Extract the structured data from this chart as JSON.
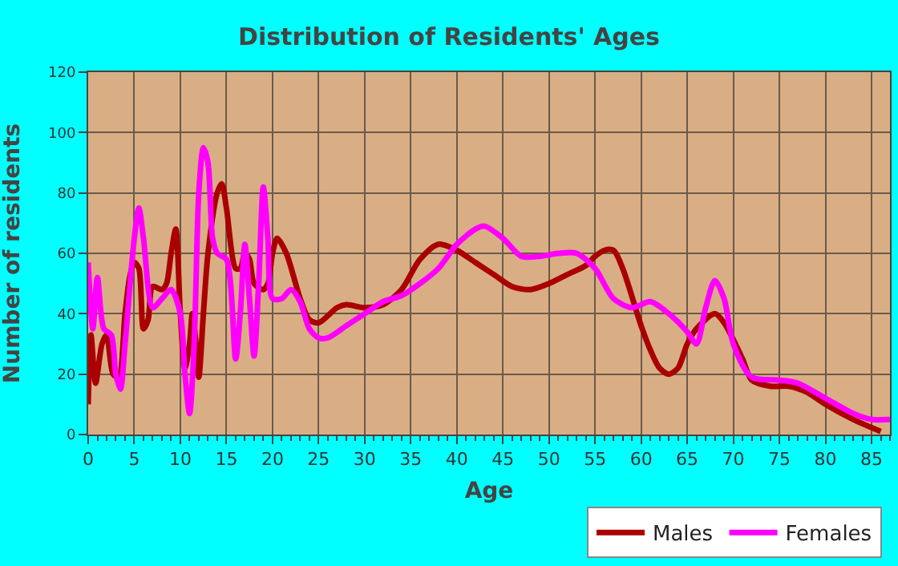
{
  "chart_data": {
    "type": "line",
    "title": "Distribution of Residents' Ages",
    "xlabel": "Age",
    "ylabel": "Number of residents",
    "xlim": [
      0,
      87
    ],
    "xticks": [
      0,
      5,
      10,
      15,
      20,
      25,
      30,
      35,
      40,
      45,
      50,
      55,
      60,
      65,
      70,
      75,
      80,
      85
    ],
    "ylim": [
      0,
      120
    ],
    "yticks": [
      0,
      20,
      40,
      60,
      80,
      100,
      120
    ],
    "grid": true,
    "legend": "bottom right",
    "marker": "none",
    "line_style": "solid",
    "series": [
      {
        "name": "Males",
        "color": "#aa0000",
        "x": [
          0,
          0.3,
          0.8,
          1.5,
          2,
          2.7,
          3.3,
          4,
          4.5,
          5,
          5.5,
          6,
          6.5,
          7,
          8,
          8.5,
          9,
          9.5,
          10,
          10.5,
          11,
          11.3,
          11.7,
          12,
          12.5,
          13,
          14,
          14.5,
          15,
          16,
          16.5,
          17,
          17.5,
          18,
          19,
          19.5,
          20,
          20.5,
          21.5,
          23,
          24,
          25,
          27,
          28,
          30,
          32,
          34,
          36,
          38,
          40,
          42,
          44,
          46,
          48,
          50,
          52,
          54,
          55,
          56,
          57,
          58,
          60,
          61,
          62,
          63,
          64,
          65,
          66,
          68,
          69,
          71,
          72,
          74,
          76,
          78,
          80,
          83,
          86
        ],
        "values": [
          10,
          33,
          17,
          30,
          33,
          20,
          19,
          40,
          52,
          57,
          55,
          35,
          38,
          49,
          48,
          50,
          60,
          68,
          40,
          22,
          30,
          40,
          30,
          19,
          40,
          60,
          80,
          83,
          75,
          55,
          55,
          60,
          58,
          50,
          48,
          50,
          60,
          65,
          60,
          45,
          38,
          37,
          42,
          43,
          42,
          43,
          48,
          58,
          63,
          61,
          57,
          53,
          49,
          48,
          50,
          53,
          56,
          59,
          61,
          61,
          55,
          36,
          28,
          22,
          20,
          22,
          30,
          35,
          40,
          37,
          25,
          18,
          16,
          16,
          14,
          10,
          5,
          1
        ]
      },
      {
        "name": "Females",
        "color": "#ff00ff",
        "x": [
          0,
          0.5,
          1,
          1.7,
          2.5,
          3,
          3.5,
          4,
          5,
          5.5,
          6,
          7,
          8,
          9,
          10,
          10.5,
          11,
          11.5,
          12,
          12.5,
          13,
          13.5,
          14,
          15,
          16,
          16.5,
          17,
          17.5,
          18,
          18.5,
          19,
          19.5,
          20,
          21,
          22,
          23,
          24,
          25,
          26,
          28,
          30,
          32,
          34,
          36,
          38,
          40,
          42,
          43,
          45,
          47,
          49,
          51,
          53,
          55,
          57,
          59,
          61,
          63,
          65,
          66,
          67,
          68,
          69,
          70,
          72,
          75,
          77,
          80,
          83,
          85,
          87
        ],
        "values": [
          57,
          35,
          52,
          35,
          33,
          20,
          15,
          30,
          65,
          75,
          65,
          42,
          45,
          48,
          40,
          20,
          7,
          30,
          80,
          95,
          90,
          65,
          60,
          58,
          25,
          40,
          63,
          45,
          26,
          50,
          82,
          65,
          45,
          45,
          48,
          44,
          35,
          32,
          32,
          36,
          40,
          44,
          46,
          50,
          55,
          63,
          68,
          69,
          65,
          59,
          59,
          60,
          60,
          55,
          45,
          42,
          44,
          40,
          34,
          30,
          42,
          51,
          45,
          30,
          19,
          18,
          17,
          12,
          7,
          5,
          5
        ]
      }
    ]
  }
}
